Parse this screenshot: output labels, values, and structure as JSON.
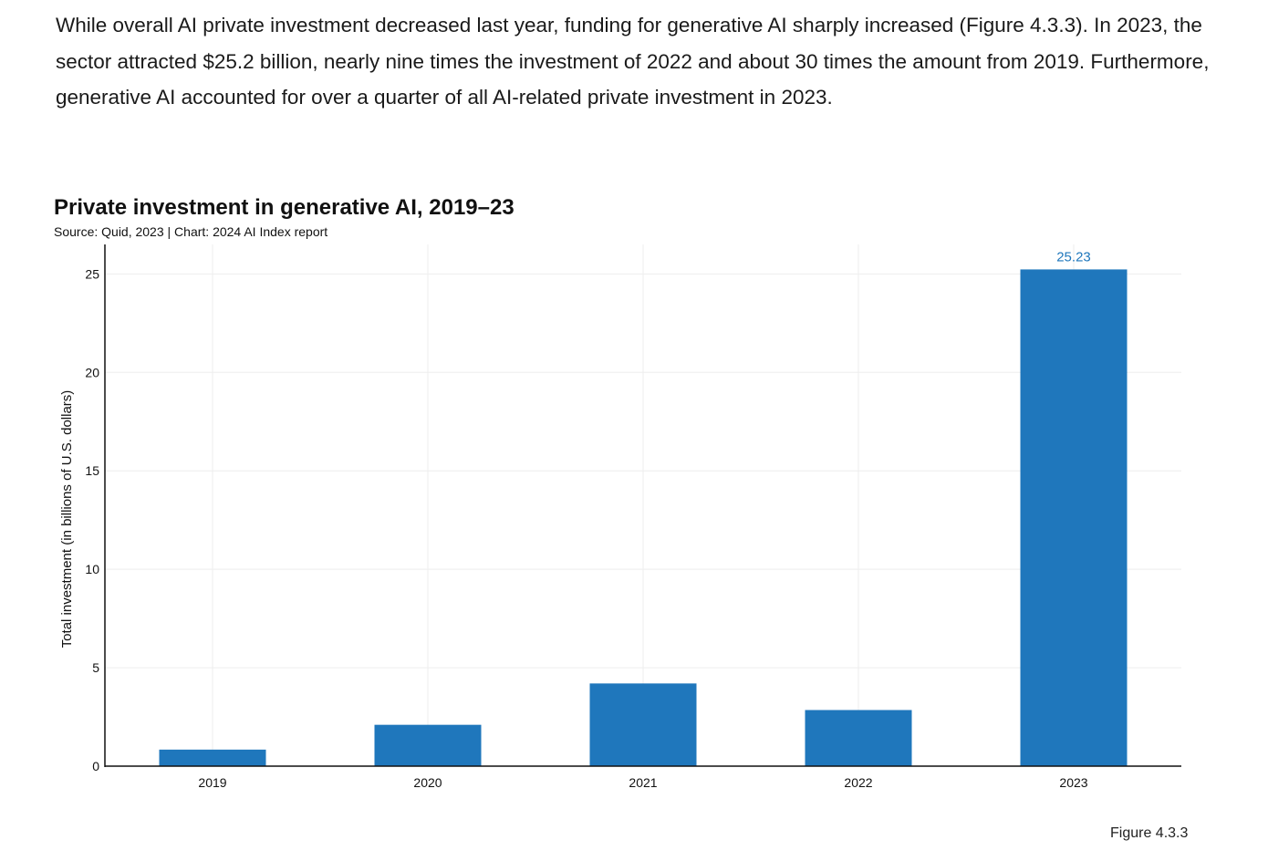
{
  "body_text": "While overall AI private investment decreased last year, funding for generative AI sharply increased (Figure 4.3.3). In 2023, the sector attracted $25.2 billion, nearly nine times the investment of 2022 and about 30 times the amount from 2019. Furthermore, generative AI accounted for over a quarter of all AI-related private investment in 2023.",
  "figure_label": "Figure 4.3.3",
  "colors": {
    "bar": "#1f77bc",
    "value_label": "#1f77bc",
    "grid": "#eeeeee",
    "axis": "#111111"
  },
  "chart_data": {
    "type": "bar",
    "title": "Private investment in generative AI, 2019–23",
    "subtitle": "Source: Quid, 2023 | Chart: 2024 AI Index report",
    "xlabel": "",
    "ylabel": "Total investment (in billions of U.S. dollars)",
    "categories": [
      "2019",
      "2020",
      "2021",
      "2022",
      "2023"
    ],
    "values": [
      0.84,
      2.1,
      4.2,
      2.85,
      25.23
    ],
    "data_labels": [
      "",
      "",
      "",
      "",
      "25.23"
    ],
    "ylim": [
      0,
      26.5
    ],
    "yticks": [
      0,
      5,
      10,
      15,
      20,
      25
    ],
    "grid": true
  }
}
